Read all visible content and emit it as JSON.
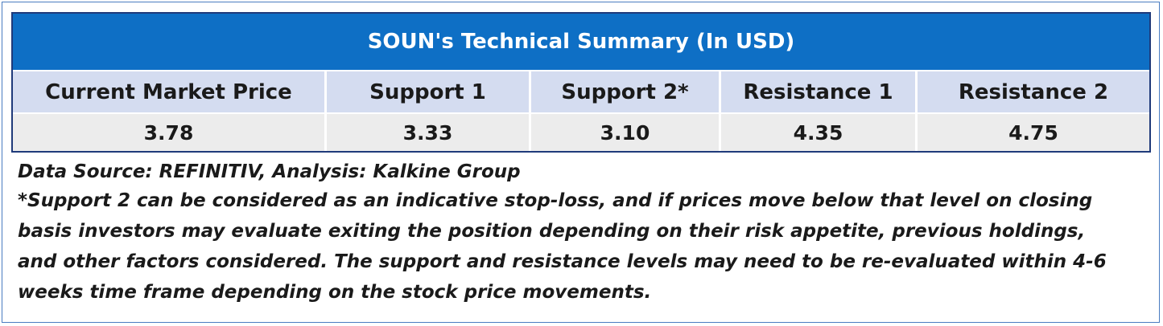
{
  "table": {
    "title": "SOUN's Technical Summary (In USD)",
    "headers": [
      "Current Market Price",
      "Support 1",
      "Support 2*",
      "Resistance 1",
      "Resistance 2"
    ],
    "values": [
      "3.78",
      "3.33",
      "3.10",
      "4.35",
      "4.75"
    ]
  },
  "notes": {
    "source": "Data Source: REFINITIV, Analysis: Kalkine Group",
    "disclaimer_lines": [
      "*Support 2 can be considered as an indicative stop-loss, and if prices move below that level on closing",
      "basis investors may evaluate exiting the position depending on their risk appetite, previous holdings,",
      "and other factors considered. The support and resistance levels may need to be re-evaluated within 4-6",
      "weeks time frame depending on the stock price movements."
    ]
  },
  "colors": {
    "title_bar": "#0e6fc5",
    "header_row": "#d4dcf0",
    "value_row": "#ececec",
    "border": "#1f3a7a"
  }
}
